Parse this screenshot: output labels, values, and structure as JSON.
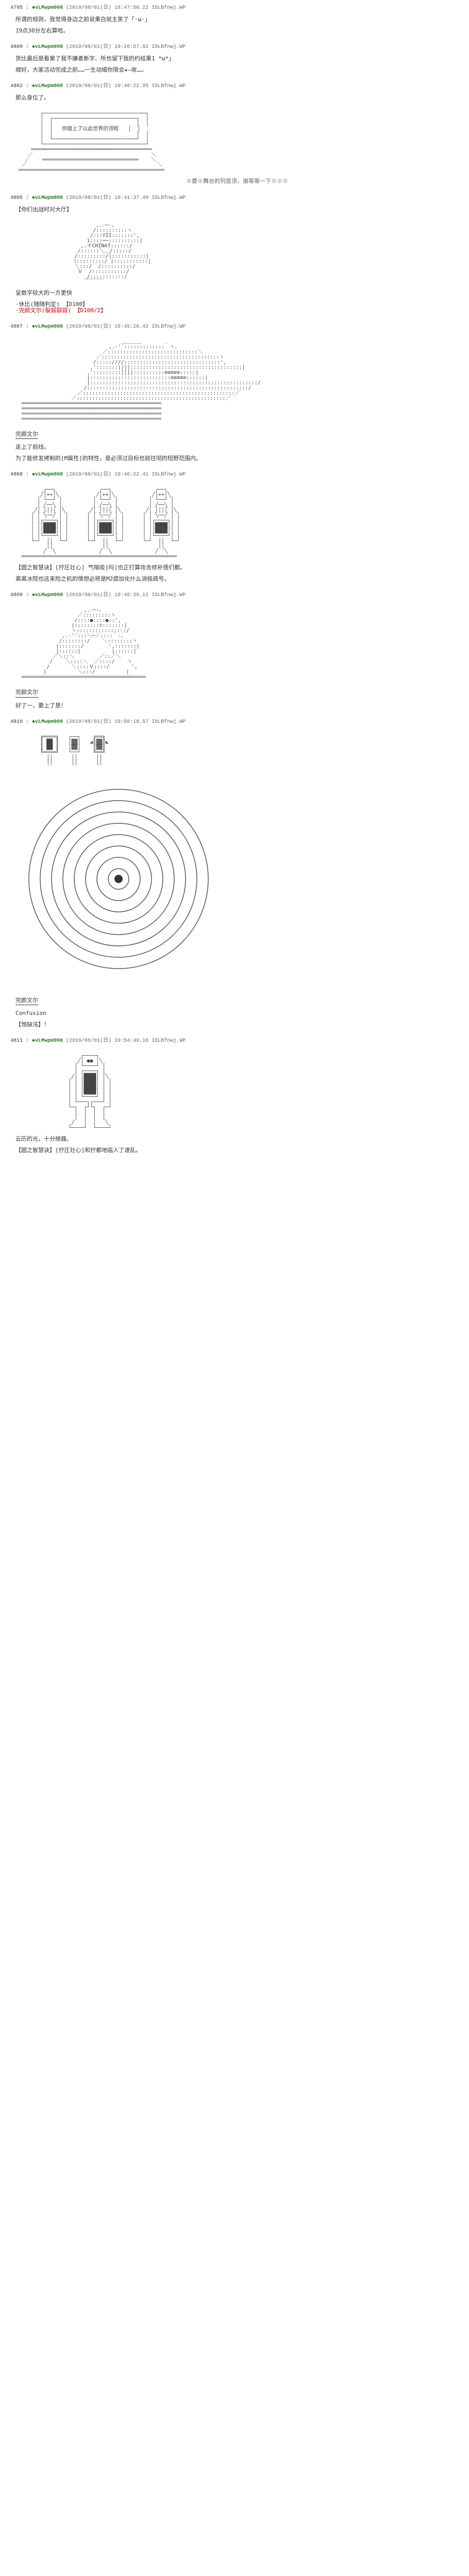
{
  "posts": [
    {
      "num": "4795",
      "name": "◆vLMwpm008",
      "date": "(2019/08/01(日) 18:47:50.22",
      "trip": "IDLBfnwj.WP",
      "lines": [
        {
          "type": "narration",
          "text": "所谓的规则，我觉得身边之前说果白就主笑了「·ω·」"
        },
        {
          "type": "narration",
          "text": "19点30分左右算哈。"
        }
      ]
    },
    {
      "num": "4800",
      "name": "◆vLMwpm008",
      "date": "(2019/08/01(日) 19:26:57.82",
      "trip": "IDLBfnwj.WP",
      "lines": [
        {
          "type": "narration",
          "text": "货比最后是看第了我不嫌者新字、所也留下我的约结果1 *ω*」"
        },
        {
          "type": "narration",
          "text": "顺好，大家活动完成之前……一生动细你限会★—收……"
        }
      ]
    },
    {
      "num": "4802",
      "name": "◆vLMwpm008",
      "date": "(2019/08/01(日) 19:40:22.95",
      "trip": "IDLBfnwj.WP",
      "lines": [
        {
          "type": "narration",
          "text": "那么身位了。"
        },
        {
          "type": "aa",
          "key": "stage"
        },
        {
          "type": "stage-label",
          "text": "※要※舞台的列首须，谢等等一下※※※"
        }
      ]
    },
    {
      "num": "4805",
      "name": "◆vLMwpm008",
      "date": "(2019/08/01(日) 19:41:37.49",
      "trip": "IDLBfnwj.WP",
      "lines": [
        {
          "type": "narration",
          "text": "【你们出战时对大厅】"
        },
        {
          "type": "aa",
          "key": "character1"
        },
        {
          "type": "narration",
          "text": "呈数字较大的一方更快"
        },
        {
          "type": "choice",
          "text": "·休比(随随利定) ",
          "code": "【D100】"
        },
        {
          "type": "choice-red",
          "text": "·完颜文尔(裂弱弱弱) ",
          "code": "【D100/2】"
        }
      ]
    },
    {
      "num": "4807",
      "name": "◆vLMwpm008",
      "date": "(2019/08/01(日) 19:45:26.42",
      "trip": "IDLBfnwj.WP",
      "lines": [
        {
          "type": "aa",
          "key": "character2"
        },
        {
          "type": "speaker",
          "text": "完颜文尔"
        },
        {
          "type": "narration",
          "text": "走上了前线。"
        },
        {
          "type": "narration",
          "text": "为了能修发拷制的[M属性]的特性，是必须过目标也就往彻的短野范围内。"
        }
      ]
    },
    {
      "num": "4808",
      "name": "◆vLMwpm008",
      "date": "(2019/08/01(日) 19:46:22.41",
      "trip": "IDLBfnwj.WP",
      "lines": [
        {
          "type": "aa",
          "key": "knights"
        },
        {
          "type": "narration",
          "text": "【圆之智慧诀】[拧圧壮心] 气喘吸]吗]也正打算攻击修补悟们都。"
        },
        {
          "type": "narration",
          "text": "离离冰院也这来险之机的情想必将是M2提加化什么消极疏号。"
        }
      ]
    },
    {
      "num": "4809",
      "name": "◆vLMwpm008",
      "date": "(2019/08/01(日) 19:48:30.11",
      "trip": "IDLBfnwj.WP",
      "lines": [
        {
          "type": "aa",
          "key": "character3"
        },
        {
          "type": "speaker",
          "text": "完颜文尔"
        },
        {
          "type": "narration",
          "text": "好了一，要上了恳！"
        }
      ]
    },
    {
      "num": "4810",
      "name": "◆vLMwpm008",
      "date": "(2019/08/01(日) 19:50:18.57",
      "trip": "IDLBfnwj.WP",
      "lines": [
        {
          "type": "aa",
          "key": "items"
        },
        {
          "type": "aa",
          "key": "spiral"
        },
        {
          "type": "speaker",
          "text": "完颜文尔"
        },
        {
          "type": "narration",
          "text": "Confusion"
        },
        {
          "type": "narration",
          "text": "【饱缺沌】！"
        }
      ]
    },
    {
      "num": "4811",
      "name": "◆vLMwpm008",
      "date": "(2019/08/01(日) 19:54:49.18",
      "trip": "IDLBfnwj.WP",
      "lines": [
        {
          "type": "aa",
          "key": "robot"
        },
        {
          "type": "narration",
          "text": "云历的光，十分继器。"
        },
        {
          "type": "narration",
          "text": "【圆之智慧诀】[拧圧壮心]和拧都地临入了速乱。"
        }
      ]
    }
  ],
  "framed_text": "你踏上了以此世界的顶程",
  "colors": {
    "bg": "#ffffff",
    "text": "#333333",
    "link": "#0044aa",
    "green": "#2a7a2a",
    "red": "#cc0000",
    "gray": "#666666"
  }
}
